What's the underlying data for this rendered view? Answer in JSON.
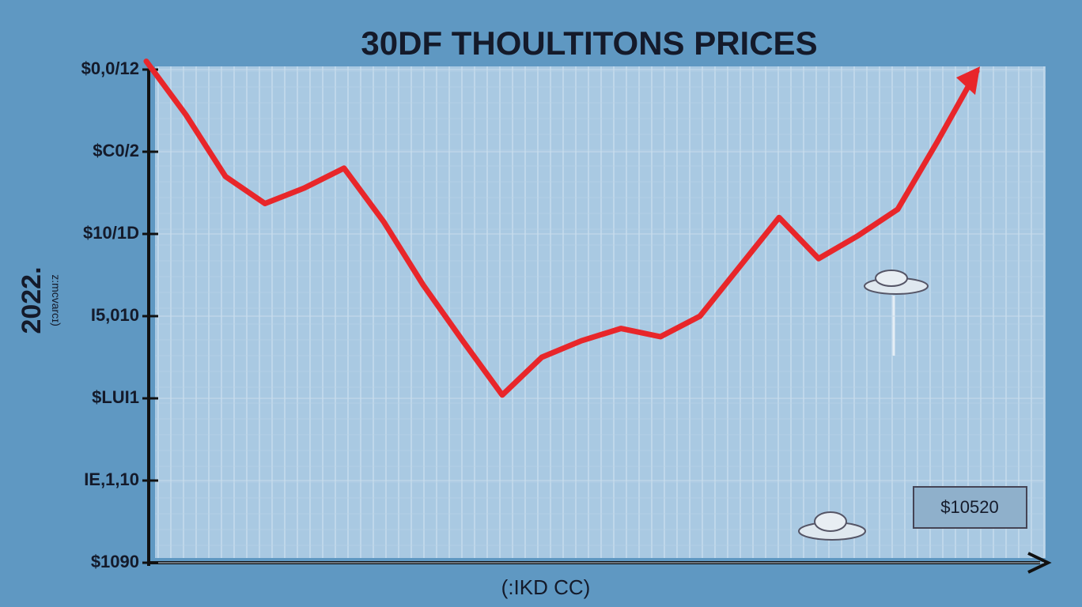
{
  "chart_data": {
    "type": "line",
    "title": "30DF THOULTITONS  PRICES",
    "x_label": "(:IKD CC)",
    "y_label": "2022.",
    "y_sublabel": "(ɪɔɹɐʌɔɯ:z",
    "annotation": "$10520",
    "categories": [
      null,
      null,
      null,
      null,
      null,
      null,
      null,
      null,
      null,
      null,
      null,
      null,
      null,
      null,
      null,
      null,
      null,
      null,
      null,
      null,
      null,
      null
    ],
    "series": [
      {
        "name": null,
        "color": "#e8262a",
        "values": [
          6.1,
          5.45,
          4.7,
          4.37,
          4.56,
          4.8,
          4.15,
          3.38,
          2.7,
          2.04,
          2.5,
          2.7,
          2.85,
          2.75,
          3.0,
          3.6,
          4.2,
          3.7,
          3.98,
          4.3,
          5.12,
          5.98
        ]
      }
    ],
    "ylim": [
      0,
      6.2
    ],
    "yticks": [
      {
        "value": 0,
        "label": "$1090"
      },
      {
        "value": 1,
        "label": "IE,1,10"
      },
      {
        "value": 2,
        "label": "$LUI1"
      },
      {
        "value": 3,
        "label": "I5,010"
      },
      {
        "value": 4,
        "label": "$10/1D"
      },
      {
        "value": 5,
        "label": "$C0/2"
      },
      {
        "value": 6,
        "label": "$0,0/12"
      }
    ],
    "grid": true
  }
}
